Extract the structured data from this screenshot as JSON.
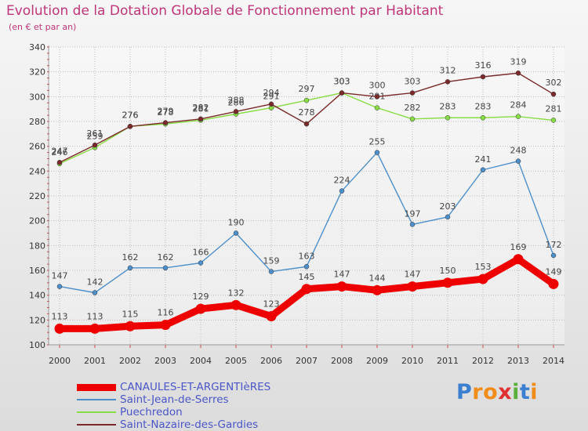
{
  "header": {
    "title": "Evolution de la Dotation Globale de Fonctionnement par Habitant",
    "subtitle": "(en € et par an)"
  },
  "chart_data": {
    "type": "line",
    "x": [
      2000,
      2001,
      2002,
      2003,
      2004,
      2005,
      2006,
      2007,
      2008,
      2009,
      2010,
      2011,
      2012,
      2013,
      2014
    ],
    "ylim": [
      100,
      340
    ],
    "yticks": [
      100,
      120,
      140,
      160,
      180,
      200,
      220,
      240,
      260,
      280,
      300,
      320,
      340
    ],
    "grid": true,
    "legend_position": "bottom-left",
    "series": [
      {
        "name": "CANAULES-ET-ARGENTIèRES",
        "color": "#ee0000",
        "values": [
          113,
          113,
          115,
          116,
          129,
          132,
          123,
          145,
          147,
          144,
          147,
          150,
          153,
          169,
          149
        ]
      },
      {
        "name": "Saint-Jean-de-Serres",
        "color": "#4d8fca",
        "values": [
          147,
          142,
          162,
          162,
          166,
          190,
          159,
          163,
          224,
          255,
          197,
          203,
          241,
          248,
          172
        ]
      },
      {
        "name": "Puechredon",
        "color": "#88dd44",
        "values": [
          246,
          259,
          276,
          278,
          281,
          286,
          291,
          297,
          303,
          291,
          282,
          283,
          283,
          284,
          281
        ]
      },
      {
        "name": "Saint-Nazaire-des-Gardies",
        "color": "#7a2a2a",
        "values": [
          247,
          261,
          276,
          279,
          282,
          288,
          294,
          278,
          303,
          300,
          303,
          312,
          316,
          319,
          302
        ]
      }
    ]
  },
  "logo": {
    "letters": [
      "P",
      "r",
      "o",
      "x",
      "i",
      "t",
      "i"
    ],
    "colors": [
      "#3a7fd0",
      "#f08c1a",
      "#f08c1a",
      "#e03030",
      "#5ab03a",
      "#3a7fd0",
      "#f08c1a"
    ]
  }
}
